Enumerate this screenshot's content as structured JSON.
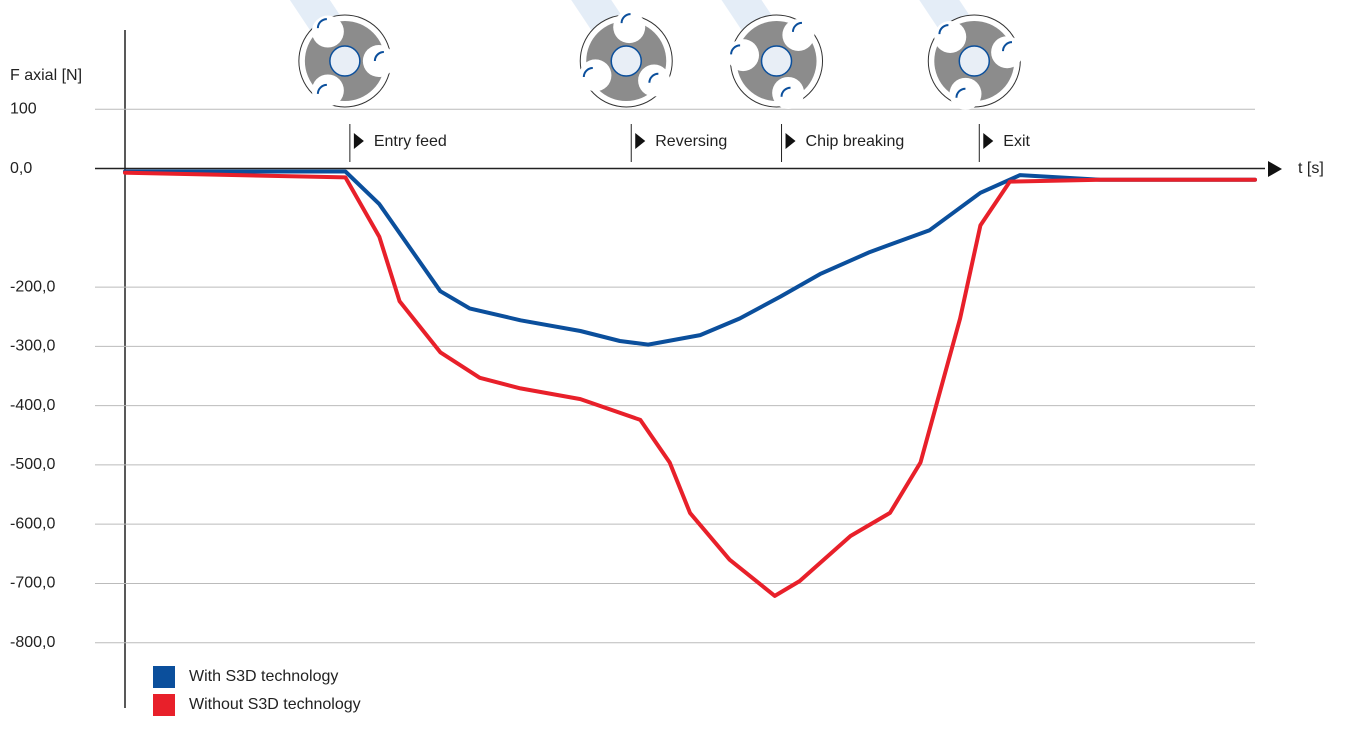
{
  "chart_data": {
    "type": "line",
    "y_label": "F axial [N]",
    "x_label": "t [s]",
    "xlim": [
      0,
      100
    ],
    "ylim": [
      -900,
      200
    ],
    "yticks": [
      {
        "value": 100,
        "label": "100"
      },
      {
        "value": 0,
        "label": "0,0"
      },
      {
        "value": -200,
        "label": "-200,0"
      },
      {
        "value": -300,
        "label": "-300,0"
      },
      {
        "value": -400,
        "label": "-400,0"
      },
      {
        "value": -500,
        "label": "-500,0"
      },
      {
        "value": -600,
        "label": "-600,0"
      },
      {
        "value": -700,
        "label": "-700,0"
      },
      {
        "value": -800,
        "label": "-800,0"
      }
    ],
    "grid": true,
    "annotations": [
      {
        "text": "Entry feed",
        "x": 19.9
      },
      {
        "text": "Reversing",
        "x": 44.8
      },
      {
        "text": "Chip breaking",
        "x": 58.1
      },
      {
        "text": "Exit",
        "x": 75.6
      }
    ],
    "series": [
      {
        "name": "With S3D technology",
        "color": "#0b4f9c",
        "x": [
          0,
          19.5,
          22.5,
          27.9,
          30.5,
          35,
          40.3,
          43.8,
          46.3,
          50.9,
          54.4,
          58,
          61.5,
          65.9,
          71.2,
          75.7,
          79.2,
          86.3,
          100
        ],
        "values": [
          -5,
          -5,
          -60,
          -207,
          -236,
          -256,
          -274,
          -291,
          -297,
          -281,
          -253,
          -216,
          -178,
          -141,
          -104,
          -41,
          -11,
          -19,
          -19
        ]
      },
      {
        "name": "Without S3D technology",
        "color": "#e8202a",
        "x": [
          0,
          19.5,
          22.5,
          24.3,
          27.9,
          31.4,
          35,
          40.3,
          45.6,
          48.2,
          50,
          53.5,
          57.5,
          59.7,
          64.2,
          67.7,
          70.4,
          73.9,
          75.7,
          78.3,
          86.3,
          100
        ],
        "values": [
          -7,
          -15,
          -115,
          -224,
          -310,
          -353,
          -371,
          -389,
          -424,
          -496,
          -581,
          -660,
          -721,
          -696,
          -620,
          -581,
          -496,
          -253,
          -96,
          -22,
          -19,
          -19
        ]
      }
    ]
  }
}
